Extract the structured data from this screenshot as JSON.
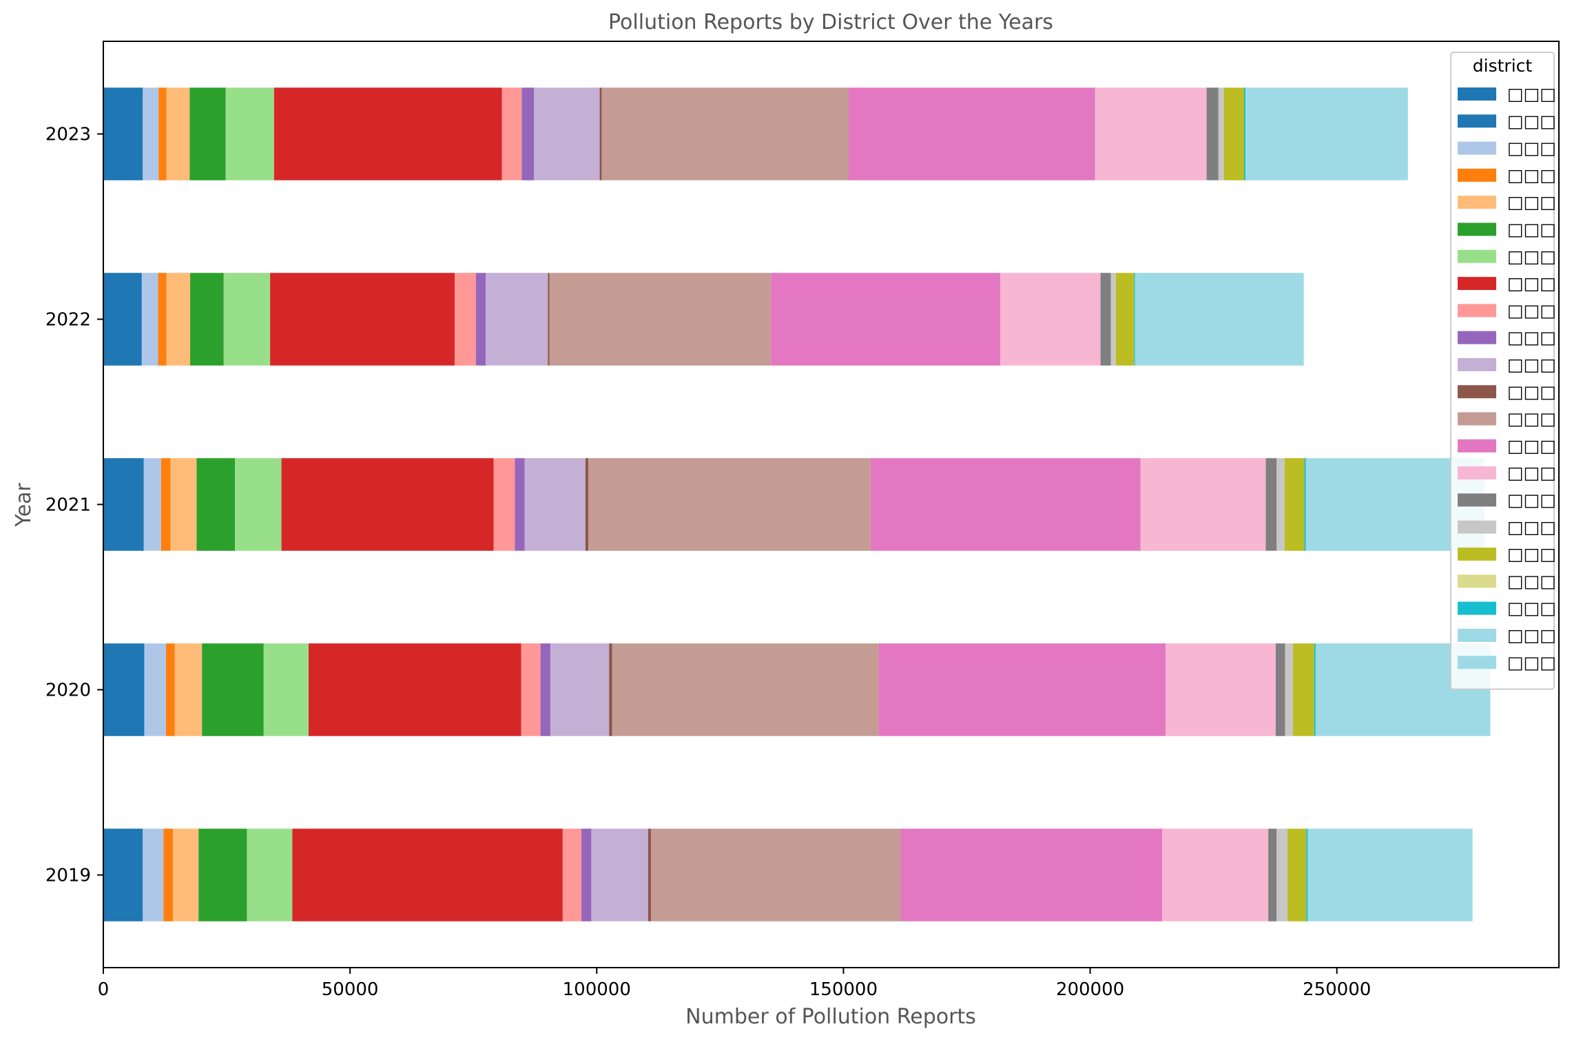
{
  "chart_data": {
    "type": "bar",
    "orientation": "horizontal",
    "stacked": true,
    "title": "Pollution Reports by District Over the Years",
    "xlabel": "Number of Pollution Reports",
    "ylabel": "Year",
    "xlim": [
      0,
      295000
    ],
    "xticks": [
      "0",
      "50000",
      "100000",
      "150000",
      "200000",
      "250000"
    ],
    "categories": [
      "2019",
      "2020",
      "2021",
      "2022",
      "2023"
    ],
    "grid": false,
    "legend": {
      "title": "district",
      "position": "top-right"
    },
    "series": [
      {
        "name": "□□□",
        "color": "#1f77b4",
        "values": [
          8000,
          8300,
          8200,
          7800,
          8000
        ]
      },
      {
        "name": "□□□",
        "color": "#1f77b4",
        "values": [
          0,
          0,
          0,
          0,
          0
        ]
      },
      {
        "name": "□□□",
        "color": "#aec7e8",
        "values": [
          4200,
          4400,
          3500,
          3300,
          3200
        ]
      },
      {
        "name": "□□□",
        "color": "#ff7f0e",
        "values": [
          1900,
          1800,
          1900,
          1700,
          1600
        ]
      },
      {
        "name": "□□□",
        "color": "#ffbb78",
        "values": [
          5200,
          5500,
          5300,
          4800,
          4700
        ]
      },
      {
        "name": "□□□",
        "color": "#2ca02c",
        "values": [
          9800,
          12500,
          7800,
          6800,
          7300
        ]
      },
      {
        "name": "□□□",
        "color": "#98df8a",
        "values": [
          9200,
          9100,
          9400,
          9400,
          9800
        ]
      },
      {
        "name": "□□□",
        "color": "#d62728",
        "values": [
          54800,
          43100,
          43000,
          37400,
          46200
        ]
      },
      {
        "name": "□□□",
        "color": "#ff9896",
        "values": [
          3800,
          3900,
          4300,
          4300,
          4000
        ]
      },
      {
        "name": "□□□",
        "color": "#9467bd",
        "values": [
          2000,
          2000,
          2000,
          2000,
          2500
        ]
      },
      {
        "name": "□□□",
        "color": "#c5b0d5",
        "values": [
          11500,
          11900,
          12300,
          12600,
          13300
        ]
      },
      {
        "name": "□□□",
        "color": "#8c564b",
        "values": [
          600,
          600,
          600,
          300,
          400
        ]
      },
      {
        "name": "□□□",
        "color": "#c49c94",
        "values": [
          50600,
          54000,
          57200,
          44900,
          50000
        ]
      },
      {
        "name": "□□□",
        "color": "#e377c2",
        "values": [
          53000,
          58200,
          54700,
          46500,
          50000
        ]
      },
      {
        "name": "□□□",
        "color": "#f7b6d2",
        "values": [
          21500,
          22300,
          25400,
          20300,
          22600
        ]
      },
      {
        "name": "□□□",
        "color": "#7f7f7f",
        "values": [
          1700,
          1900,
          2200,
          2100,
          2400
        ]
      },
      {
        "name": "□□□",
        "color": "#c7c7c7",
        "values": [
          2200,
          1600,
          1600,
          1000,
          1100
        ]
      },
      {
        "name": "□□□",
        "color": "#bcbd22",
        "values": [
          3800,
          4300,
          4000,
          3700,
          4100
        ]
      },
      {
        "name": "□□□",
        "color": "#dbdb8d",
        "values": [
          0,
          0,
          0,
          0,
          0
        ]
      },
      {
        "name": "□□□",
        "color": "#17becf",
        "values": [
          300,
          300,
          300,
          200,
          300
        ]
      },
      {
        "name": "□□□",
        "color": "#9edae5",
        "values": [
          33400,
          35400,
          36200,
          34200,
          32900
        ]
      },
      {
        "name": "□□□",
        "color": "#9edae5",
        "values": [
          0,
          0,
          0,
          0,
          0
        ]
      }
    ]
  }
}
